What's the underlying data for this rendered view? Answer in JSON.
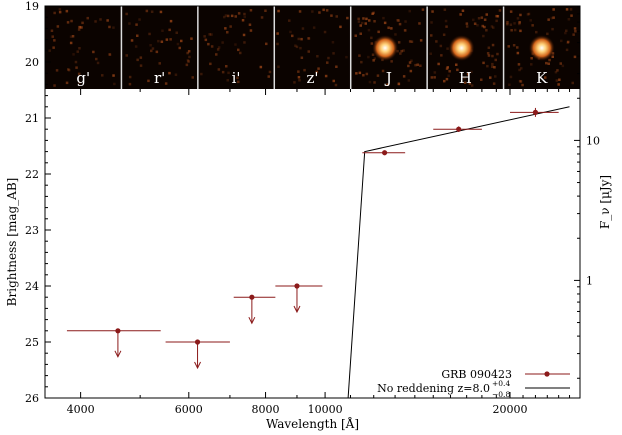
{
  "chart_data": {
    "type": "scatter",
    "xlabel": "Wavelength [Å]",
    "ylabel_left": "Brightness [mag_AB]",
    "ylabel_right": "F_ν [μJy]",
    "x_scale": "log",
    "x_range": [
      3500,
      26000
    ],
    "x_ticks": [
      4000,
      6000,
      8000,
      10000,
      20000
    ],
    "x_tick_labels": [
      "4000",
      "6000",
      "8000",
      "10000",
      "20000"
    ],
    "y_range": [
      19,
      26
    ],
    "y_inverted": true,
    "y_ticks_left": [
      19,
      20,
      21,
      22,
      23,
      24,
      25,
      26
    ],
    "y_ticks_right": [
      1,
      10
    ],
    "y_tick_labels_right": [
      "1",
      "10"
    ],
    "filter_panels": [
      "g'",
      "r'",
      "i'",
      "z'",
      "J",
      "H",
      "K"
    ],
    "series": [
      {
        "name": "GRB 090423",
        "color": "#8b1a1a",
        "points": [
          {
            "x": 4600,
            "xerr": [
              3800,
              5400
            ],
            "y": 24.8,
            "upper_limit": true
          },
          {
            "x": 6200,
            "xerr": [
              5500,
              7000
            ],
            "y": 25.0,
            "upper_limit": true
          },
          {
            "x": 7600,
            "xerr": [
              7100,
              8300
            ],
            "y": 24.2,
            "upper_limit": true
          },
          {
            "x": 9000,
            "xerr": [
              8300,
              9900
            ],
            "y": 24.0,
            "upper_limit": true
          },
          {
            "x": 12500,
            "xerr": [
              11500,
              13500
            ],
            "y": 21.62,
            "yerr": 0.04
          },
          {
            "x": 16500,
            "xerr": [
              15000,
              18000
            ],
            "y": 21.2,
            "yerr": 0.05
          },
          {
            "x": 22000,
            "xerr": [
              20000,
              24000
            ],
            "y": 20.9,
            "yerr": 0.08
          }
        ]
      },
      {
        "name": "No reddening z=8.0^{+0.4}_{-0.8}",
        "type": "line",
        "color": "#000000",
        "x": [
          10900,
          11600,
          25000
        ],
        "y": [
          26.0,
          21.6,
          20.8
        ]
      }
    ],
    "legend": {
      "position": "bottom-right",
      "entries": [
        "GRB 090423",
        "No reddening z=8.0"
      ],
      "sup": "+0.4",
      "sub": "−0.8"
    }
  }
}
